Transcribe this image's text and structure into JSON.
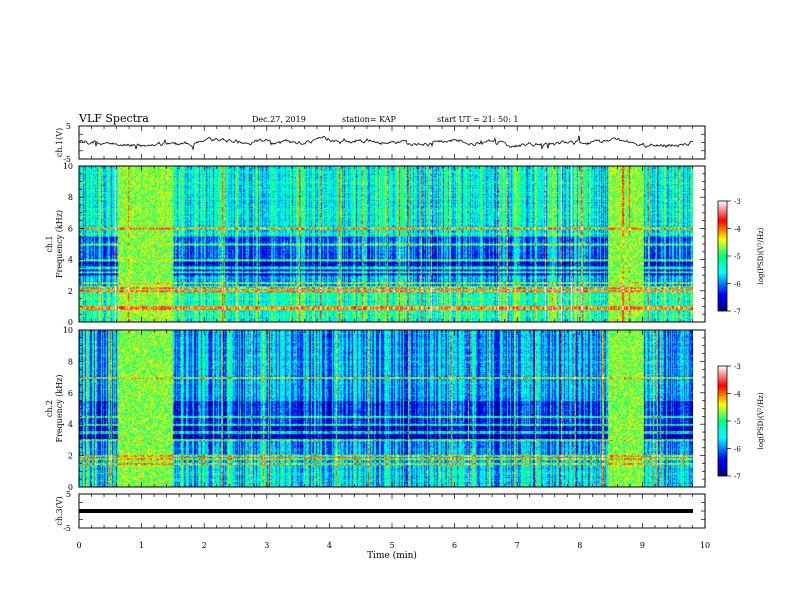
{
  "header": {
    "title": "VLF Spectra",
    "date": "Dec.27, 2019",
    "station": "station= KAP",
    "start": "start  UT =   21: 50: 1"
  },
  "chart_data": {
    "type": "heatmap",
    "xlabel": "Time  (min)",
    "xlim": [
      0,
      10
    ],
    "xticks": [
      "0",
      "1",
      "2",
      "3",
      "4",
      "5",
      "6",
      "7",
      "8",
      "9",
      "10"
    ],
    "panels": [
      {
        "id": "ch1-waveform",
        "type": "line",
        "ylabel": "ch.1(V)",
        "ylim": [
          -5,
          5
        ],
        "yticks": [
          "5",
          "-5"
        ]
      },
      {
        "id": "ch1-spectrogram",
        "type": "heatmap",
        "ylabel": "ch.1",
        "ylabel2": "Frequency  (kHz)",
        "ylim": [
          0,
          10
        ],
        "yticks": [
          "0",
          "2",
          "4",
          "6",
          "8",
          "10"
        ],
        "colorbar": {
          "label": "log(PSD)(V²/Hz)",
          "range": [
            -7,
            -3
          ],
          "ticks": [
            "-3",
            "-4",
            "-5",
            "-6",
            "-7"
          ]
        },
        "bursts_min": [
          [
            0.62,
            1.48
          ],
          [
            8.45,
            9.0
          ]
        ],
        "lines_khz": [
          0.85,
          1.0,
          2.0,
          2.2,
          2.5,
          3.2,
          3.5,
          4.0,
          5.0,
          6.0
        ]
      },
      {
        "id": "ch2-spectrogram",
        "type": "heatmap",
        "ylabel": "ch.2",
        "ylabel2": "Frequency  (kHz)",
        "ylim": [
          0,
          10
        ],
        "yticks": [
          "0",
          "2",
          "4",
          "6",
          "8",
          "10"
        ],
        "colorbar": {
          "label": "log(PSD)(V²/Hz)",
          "range": [
            -7,
            -3
          ],
          "ticks": [
            "-3",
            "-4",
            "-5",
            "-6",
            "-7"
          ]
        },
        "bursts_min": [
          [
            0.62,
            1.48
          ],
          [
            8.45,
            9.0
          ]
        ],
        "lines_khz": [
          1.5,
          1.8,
          2.0,
          3.0,
          3.5,
          4.0,
          4.5,
          7.0
        ]
      },
      {
        "id": "ch3-waveform",
        "type": "line",
        "ylabel": "ch.3(V)",
        "ylim": [
          -5,
          5
        ],
        "yticks": [
          "5",
          "-5"
        ],
        "constant_value": 0
      }
    ],
    "colors": {
      "low": "#00007f",
      "mid": "#00ff80",
      "high": "#ff0000"
    }
  }
}
